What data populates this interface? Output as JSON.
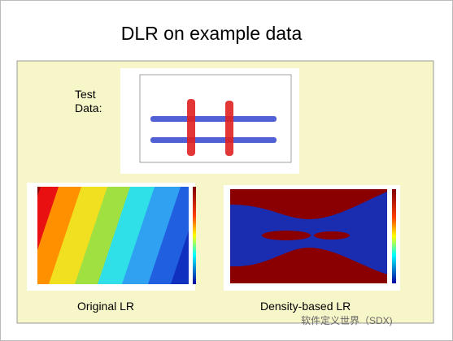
{
  "slide": {
    "title": "DLR on example data",
    "test_label": "Test\nData:",
    "left_caption": "Original LR",
    "right_caption": "Density-based LR",
    "watermark": "软件定义世界（SDX)"
  }
}
